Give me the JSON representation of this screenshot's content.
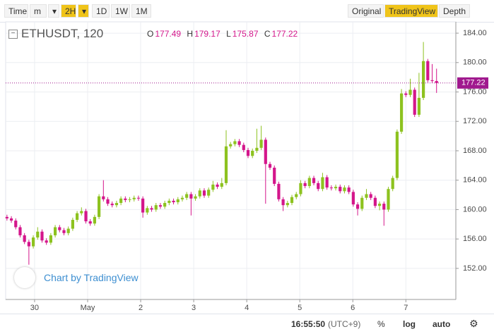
{
  "toolbar": {
    "left": [
      "Time",
      "m",
      "▾",
      "2H",
      "▾",
      "1D",
      "1W",
      "1M"
    ],
    "right": [
      "Original",
      "TradingView",
      "Depth"
    ],
    "active_left": 3,
    "active_right": 1
  },
  "header": {
    "symbol": "ETHUSDT, 120",
    "open_label": "O",
    "high_label": "H",
    "low_label": "L",
    "close_label": "C"
  },
  "watermark": "Chart by TradingView",
  "footer": {
    "time": "16:55:50",
    "timezone": "(UTC+9)",
    "buttons": [
      "%",
      "log",
      "auto"
    ]
  },
  "chart_data": {
    "type": "candlestick",
    "up_color": "#8dc21f",
    "down_color": "#d4168b",
    "last_price_color": "#a0198e",
    "grid": true,
    "xlim": [
      -0.3,
      102.4
    ],
    "xticks": [
      {
        "value": 6.3,
        "label": "30"
      },
      {
        "value": 18.4,
        "label": "May"
      },
      {
        "value": 30.5,
        "label": "2"
      },
      {
        "value": 42.6,
        "label": "3"
      },
      {
        "value": 54.7,
        "label": "4"
      },
      {
        "value": 66.8,
        "label": "5"
      },
      {
        "value": 78.9,
        "label": "6"
      },
      {
        "value": 91,
        "label": "7"
      }
    ],
    "ylim": [
      147.77,
      185.54
    ],
    "yticks": [
      {
        "value": 152,
        "label": "152.00"
      },
      {
        "value": 156,
        "label": "156.00"
      },
      {
        "value": 160,
        "label": "160.00"
      },
      {
        "value": 164,
        "label": "164.00"
      },
      {
        "value": 168,
        "label": "168.00"
      },
      {
        "value": 172,
        "label": "172.00"
      },
      {
        "value": 176,
        "label": "176.00"
      },
      {
        "value": 180,
        "label": "180.00"
      },
      {
        "value": 184,
        "label": "184.00"
      }
    ],
    "series": {
      "open": [
        159.0,
        158.8,
        158.5,
        157.6,
        156.5,
        155.6,
        155.0,
        156.2,
        157.0,
        155.8,
        155.5,
        156.5,
        157.6,
        157.2,
        156.8,
        157.4,
        158.6,
        159.5,
        159.8,
        158.4,
        158.1,
        159.0,
        161.8,
        161.4,
        160.8,
        160.6,
        160.9,
        161.5,
        161.3,
        161.4,
        161.6,
        161.5,
        159.6,
        160.2,
        160.0,
        160.6,
        160.4,
        160.9,
        161.2,
        161.0,
        161.4,
        161.6,
        162.1,
        161.5,
        161.8,
        162.6,
        161.9,
        162.7,
        163.4,
        163.1,
        163.6,
        168.6,
        168.9,
        169.3,
        168.8,
        168.1,
        167.3,
        168.0,
        168.4,
        169.5,
        166.2,
        165.7,
        163.5,
        161.4,
        160.6,
        160.9,
        161.7,
        162.1,
        163.6,
        163.2,
        164.3,
        163.6,
        162.8,
        164.4,
        163.0,
        162.9,
        163.1,
        162.5,
        163.0,
        162.4,
        160.7,
        160.1,
        161.6,
        162.1,
        161.6,
        160.5,
        160.8,
        160.0,
        162.8,
        164.3,
        170.6,
        175.8,
        175.6,
        176.3,
        172.9,
        175.2,
        180.2,
        177.6,
        177.49
      ],
      "high": [
        159.3,
        159.1,
        158.8,
        157.9,
        156.8,
        155.9,
        156.5,
        157.6,
        157.3,
        156.1,
        156.8,
        157.9,
        157.9,
        157.5,
        157.7,
        158.9,
        159.8,
        160.3,
        160.1,
        158.7,
        159.3,
        162.1,
        164.0,
        161.7,
        161.1,
        161.2,
        161.8,
        161.8,
        161.7,
        161.9,
        161.9,
        161.8,
        160.5,
        160.5,
        160.9,
        160.9,
        161.2,
        161.5,
        161.5,
        161.7,
        161.9,
        162.4,
        162.4,
        162.1,
        162.9,
        162.9,
        163.0,
        163.9,
        163.7,
        164.3,
        170.8,
        169.2,
        169.6,
        169.6,
        169.1,
        168.4,
        168.3,
        171.0,
        171.4,
        169.8,
        166.5,
        166.0,
        163.8,
        161.7,
        161.2,
        162.0,
        162.4,
        164.0,
        163.9,
        164.6,
        164.6,
        163.9,
        165.0,
        164.7,
        163.3,
        163.4,
        163.4,
        163.3,
        163.3,
        162.7,
        161.0,
        161.9,
        162.8,
        162.4,
        161.9,
        161.1,
        161.1,
        163.1,
        164.6,
        170.9,
        176.4,
        176.1,
        177.8,
        176.6,
        178.6,
        182.8,
        180.5,
        179.8,
        179.17
      ],
      "low": [
        158.5,
        158.2,
        157.3,
        156.2,
        155.3,
        152.5,
        154.7,
        155.9,
        155.5,
        155.2,
        155.2,
        156.2,
        156.9,
        156.5,
        156.5,
        157.1,
        158.3,
        159.2,
        158.1,
        157.8,
        157.8,
        158.7,
        161.1,
        160.5,
        160.3,
        160.3,
        160.6,
        161.0,
        161.0,
        161.1,
        161.2,
        158.9,
        159.3,
        159.7,
        159.7,
        160.1,
        160.1,
        160.6,
        160.7,
        160.7,
        161.1,
        161.3,
        159.2,
        161.2,
        161.5,
        161.6,
        161.6,
        162.4,
        162.8,
        162.8,
        163.3,
        168.3,
        168.6,
        168.5,
        167.8,
        167.0,
        167.0,
        167.7,
        168.1,
        160.8,
        165.4,
        163.2,
        161.1,
        159.8,
        160.3,
        160.6,
        161.4,
        161.8,
        162.9,
        162.9,
        163.3,
        162.5,
        162.5,
        162.7,
        162.6,
        162.6,
        162.2,
        162.2,
        162.1,
        160.4,
        159.2,
        159.8,
        161.3,
        161.3,
        160.2,
        159.9,
        157.8,
        159.7,
        162.5,
        164.0,
        170.3,
        175.3,
        175.3,
        172.6,
        172.6,
        174.9,
        177.3,
        177.2,
        175.87
      ],
      "close": [
        158.8,
        158.5,
        157.6,
        156.5,
        155.6,
        155.0,
        156.2,
        157.0,
        155.8,
        155.5,
        156.5,
        157.6,
        157.2,
        156.8,
        157.4,
        158.6,
        159.5,
        159.8,
        158.4,
        158.1,
        159.0,
        161.8,
        161.4,
        160.8,
        160.6,
        160.9,
        161.5,
        161.3,
        161.4,
        161.6,
        161.5,
        159.6,
        160.2,
        160.0,
        160.6,
        160.4,
        160.9,
        161.2,
        161.0,
        161.4,
        161.6,
        162.1,
        161.5,
        161.8,
        162.6,
        161.9,
        162.7,
        163.4,
        163.1,
        163.6,
        168.6,
        168.9,
        169.3,
        168.8,
        168.1,
        167.3,
        168.0,
        168.4,
        169.5,
        166.2,
        165.7,
        163.5,
        161.4,
        160.6,
        160.9,
        161.7,
        162.1,
        163.6,
        163.2,
        164.3,
        163.6,
        162.8,
        164.4,
        163.0,
        162.9,
        163.1,
        162.5,
        163.0,
        162.4,
        160.7,
        160.1,
        161.6,
        162.1,
        161.6,
        160.5,
        160.8,
        160.0,
        162.8,
        164.3,
        170.6,
        175.8,
        175.6,
        176.3,
        172.9,
        175.2,
        180.2,
        177.6,
        177.49,
        177.22
      ]
    }
  }
}
